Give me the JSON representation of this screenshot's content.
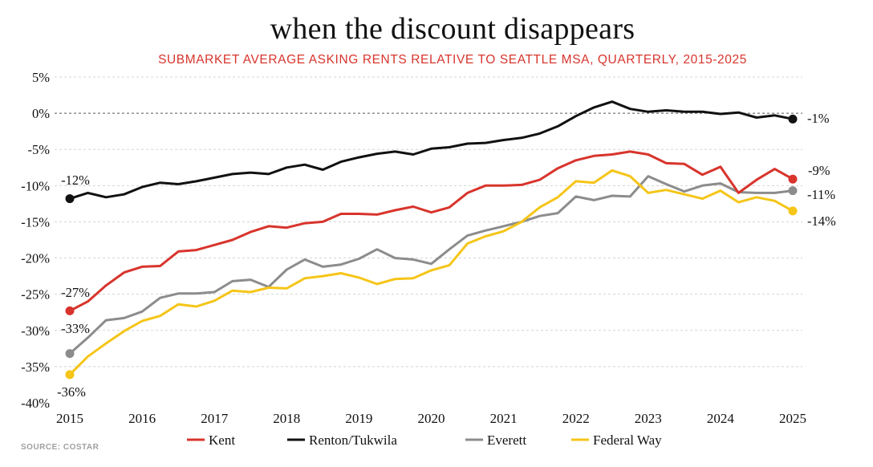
{
  "title": "when the discount disappears",
  "subtitle": "SUBMARKET AVERAGE ASKING RENTS RELATIVE TO SEATTLE MSA, QUARTERLY, 2015-2025",
  "source": "SOURCE: COSTAR",
  "chart_data": {
    "type": "line",
    "title": "when the discount disappears",
    "subtitle": "SUBMARKET AVERAGE ASKING RENTS RELATIVE TO SEATTLE MSA, QUARTERLY, 2015-2025",
    "ylim": [
      -40,
      5
    ],
    "xlim": [
      2015,
      2025
    ],
    "yticks": [
      5,
      0,
      -5,
      -10,
      -15,
      -20,
      -25,
      -30,
      -35,
      -40
    ],
    "ytick_labels": [
      "5%",
      "0%",
      "-5%",
      "-10%",
      "-15%",
      "-20%",
      "-25%",
      "-30%",
      "-35%",
      "-40%"
    ],
    "xticks": [
      2015,
      2016,
      2017,
      2018,
      2019,
      2020,
      2021,
      2022,
      2023,
      2024,
      2025
    ],
    "xtick_labels": [
      "2015",
      "2016",
      "2017",
      "2018",
      "2019",
      "2020",
      "2021",
      "2022",
      "2023",
      "2024",
      "2025"
    ],
    "grid": "horizontal dashed",
    "reference_line": 0,
    "legend_position": "bottom",
    "series": [
      {
        "name": "Kent",
        "color": "#d8342c",
        "values": [
          -27.3,
          -26.0,
          -23.8,
          -22.0,
          -21.2,
          -21.1,
          -19.1,
          -18.9,
          -18.2,
          -17.5,
          -16.4,
          -15.6,
          -15.8,
          -15.2,
          -15.0,
          -13.9,
          -13.9,
          -14.0,
          -13.4,
          -12.9,
          -13.7,
          -13.0,
          -11.0,
          -10.0,
          -10.0,
          -9.9,
          -9.2,
          -7.6,
          -6.5,
          -5.9,
          -5.7,
          -5.3,
          -5.7,
          -6.9,
          -7.0,
          -8.5,
          -7.4,
          -11.0,
          -9.2,
          -7.7,
          -9.1
        ],
        "start_label": "-27%",
        "end_label": "-9%"
      },
      {
        "name": "Renton/Tukwila",
        "color": "#111111",
        "values": [
          -11.8,
          -11.0,
          -11.6,
          -11.2,
          -10.2,
          -9.6,
          -9.8,
          -9.4,
          -8.9,
          -8.4,
          -8.2,
          -8.4,
          -7.5,
          -7.1,
          -7.8,
          -6.7,
          -6.1,
          -5.6,
          -5.3,
          -5.7,
          -4.9,
          -4.7,
          -4.2,
          -4.1,
          -3.7,
          -3.4,
          -2.8,
          -1.8,
          -0.4,
          0.8,
          1.6,
          0.6,
          0.2,
          0.4,
          0.2,
          0.2,
          -0.1,
          0.1,
          -0.6,
          -0.3,
          -0.8
        ],
        "start_label": "-12%",
        "end_label": "-1%"
      },
      {
        "name": "Everett",
        "color": "#8c8c8c",
        "values": [
          -33.2,
          -31.0,
          -28.6,
          -28.3,
          -27.4,
          -25.5,
          -24.9,
          -24.9,
          -24.7,
          -23.2,
          -23.0,
          -24.0,
          -21.6,
          -20.2,
          -21.2,
          -20.9,
          -20.1,
          -18.8,
          -20.0,
          -20.2,
          -20.8,
          -18.8,
          -16.9,
          -16.2,
          -15.6,
          -15.0,
          -14.2,
          -13.8,
          -11.5,
          -12.0,
          -11.4,
          -11.5,
          -8.7,
          -9.8,
          -10.8,
          -10.0,
          -9.7,
          -10.9,
          -11.0,
          -11.0,
          -10.7
        ],
        "start_label": "-33%",
        "end_label": "-11%"
      },
      {
        "name": "Federal Way",
        "color": "#f5c518",
        "values": [
          -36.1,
          -33.6,
          -31.8,
          -30.1,
          -28.7,
          -28.0,
          -26.4,
          -26.7,
          -25.9,
          -24.5,
          -24.7,
          -24.1,
          -24.2,
          -22.8,
          -22.5,
          -22.1,
          -22.7,
          -23.6,
          -22.9,
          -22.8,
          -21.7,
          -21.0,
          -18.0,
          -17.0,
          -16.3,
          -15.0,
          -13.0,
          -11.6,
          -9.4,
          -9.6,
          -7.9,
          -8.7,
          -11.0,
          -10.6,
          -11.2,
          -11.8,
          -10.7,
          -12.3,
          -11.6,
          -12.1,
          -13.5
        ],
        "start_label": "-36%",
        "end_label": "-14%"
      }
    ]
  }
}
